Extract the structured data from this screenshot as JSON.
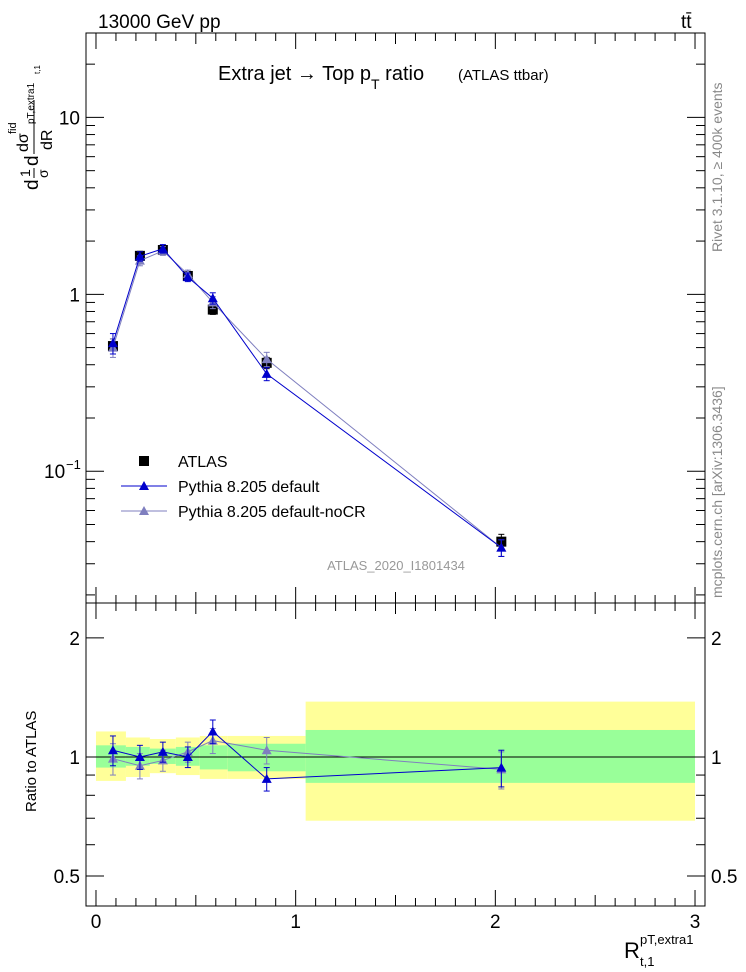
{
  "header": {
    "left": "13000 GeV pp",
    "right": "tt̄"
  },
  "side_labels": {
    "rivet": "Rivet 3.1.10, ≥ 400k events",
    "mcplots": "mcplots.cern.ch [arXiv:1306.3436]"
  },
  "chart_data": [
    {
      "type": "line",
      "panel": "main",
      "title": "Extra jet → Top p",
      "title_sub": "T",
      "title_tail": " ratio",
      "title_note": "(ATLAS ttbar)",
      "ylabel": "d(1/σ dσfid / dR pT,extra1 t,1)",
      "ylabel_parts": {
        "d1": "d",
        "one": "1",
        "sigma": "σ",
        "d2": "d",
        "dsigma": "dσ",
        "fid": "fid",
        "dR": "dR",
        "sub": "pT,extra1",
        "subsub": "t,1"
      },
      "yscale": "log",
      "ylim": [
        0.018,
        30
      ],
      "xlim": [
        -0.05,
        3.05
      ],
      "yticks": [
        {
          "value": 0.1,
          "label": "10",
          "exp": "−1"
        },
        {
          "value": 1,
          "label": "1",
          "exp": ""
        },
        {
          "value": 10,
          "label": "10",
          "exp": ""
        }
      ],
      "watermark": "ATLAS_2020_I1801434",
      "legend_position": "bottom-left",
      "series": [
        {
          "name": "ATLAS",
          "color": "#000000",
          "marker": "square",
          "x": [
            0.085,
            0.22,
            0.335,
            0.46,
            0.585,
            0.855,
            2.03
          ],
          "y": [
            0.51,
            1.65,
            1.78,
            1.27,
            0.82,
            0.41,
            0.04
          ],
          "yerr": [
            0.05,
            0.1,
            0.1,
            0.07,
            0.05,
            0.03,
            0.004
          ]
        },
        {
          "name": "Pythia 8.205 default",
          "color": "#0000cc",
          "marker": "triangle",
          "x": [
            0.085,
            0.22,
            0.335,
            0.46,
            0.585,
            0.855,
            2.03
          ],
          "y": [
            0.53,
            1.64,
            1.81,
            1.25,
            0.95,
            0.355,
            0.037
          ],
          "yerr": [
            0.07,
            0.1,
            0.1,
            0.07,
            0.07,
            0.03,
            0.004
          ]
        },
        {
          "name": "Pythia 8.205 default-noCR",
          "color": "#7f7fbf",
          "marker": "triangle",
          "x": [
            0.085,
            0.22,
            0.335,
            0.46,
            0.585,
            0.855,
            2.03
          ],
          "y": [
            0.5,
            1.55,
            1.76,
            1.3,
            0.9,
            0.43,
            0.037
          ],
          "yerr": [
            0.06,
            0.1,
            0.1,
            0.07,
            0.07,
            0.04,
            0.004
          ]
        }
      ]
    },
    {
      "type": "line",
      "panel": "ratio",
      "ylabel": "Ratio to ATLAS",
      "yscale": "log",
      "ylim": [
        0.42,
        2.45
      ],
      "yticks": [
        {
          "value": 0.5,
          "label": "0.5"
        },
        {
          "value": 1,
          "label": "1"
        },
        {
          "value": 2,
          "label": "2"
        }
      ],
      "xlabel": "R",
      "xlabel_sup": "pT,extra1",
      "xlabel_sub": "t,1",
      "xticks": [
        {
          "value": 0,
          "label": "0"
        },
        {
          "value": 1,
          "label": "1"
        },
        {
          "value": 2,
          "label": "2"
        },
        {
          "value": 3,
          "label": "3"
        }
      ],
      "bands": {
        "edges": [
          0.0,
          0.15,
          0.27,
          0.4,
          0.52,
          0.66,
          1.05,
          3.0
        ],
        "inner": [
          [
            0.94,
            1.07
          ],
          [
            0.95,
            1.06
          ],
          [
            0.96,
            1.05
          ],
          [
            0.95,
            1.06
          ],
          [
            0.93,
            1.07
          ],
          [
            0.92,
            1.08
          ],
          [
            0.86,
            1.17
          ]
        ],
        "outer": [
          [
            0.87,
            1.16
          ],
          [
            0.89,
            1.12
          ],
          [
            0.91,
            1.11
          ],
          [
            0.9,
            1.12
          ],
          [
            0.88,
            1.13
          ],
          [
            0.88,
            1.13
          ],
          [
            0.69,
            1.38
          ]
        ]
      },
      "series": [
        {
          "name": "Pythia 8.205 default",
          "color": "#0000cc",
          "marker": "triangle",
          "x": [
            0.085,
            0.22,
            0.335,
            0.46,
            0.585,
            0.855,
            2.03
          ],
          "y": [
            1.04,
            1.0,
            1.03,
            1.0,
            1.16,
            0.88,
            0.94
          ],
          "yerr": [
            0.09,
            0.07,
            0.06,
            0.06,
            0.08,
            0.06,
            0.1
          ]
        },
        {
          "name": "Pythia 8.205 default-noCR",
          "color": "#7f7fbf",
          "marker": "triangle",
          "x": [
            0.085,
            0.22,
            0.335,
            0.46,
            0.585,
            0.855,
            2.03
          ],
          "y": [
            0.99,
            0.95,
            0.98,
            1.03,
            1.1,
            1.04,
            0.93
          ],
          "yerr": [
            0.09,
            0.07,
            0.06,
            0.06,
            0.08,
            0.08,
            0.1
          ]
        }
      ]
    }
  ]
}
